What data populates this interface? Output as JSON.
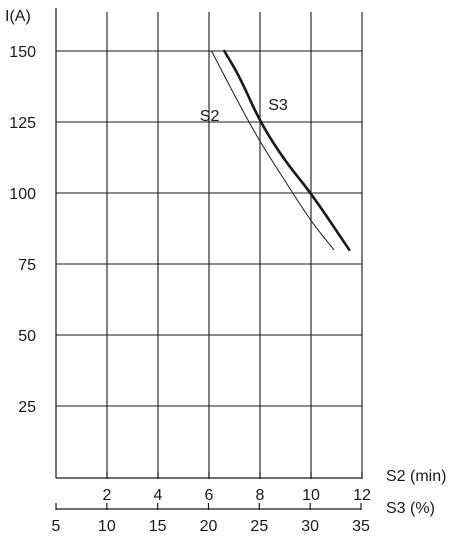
{
  "chart_data": {
    "type": "line",
    "ylabel": "I(A)",
    "y_ticks": [
      25,
      50,
      75,
      100,
      125,
      150
    ],
    "ylim": [
      0,
      160
    ],
    "x_axes": [
      {
        "label": "S2 (min)",
        "ticks": [
          2,
          4,
          6,
          8,
          10,
          12
        ],
        "xlim": [
          0,
          12
        ]
      },
      {
        "label": "S3 (%)",
        "ticks": [
          5,
          10,
          15,
          20,
          25,
          30,
          35
        ],
        "xlim": [
          5,
          35
        ]
      }
    ],
    "grid": true,
    "series": [
      {
        "name": "S2",
        "axis": "S2 (min)",
        "stroke": "thin",
        "x": [
          6.1,
          7.2,
          8.0,
          9.0,
          10.0,
          10.9
        ],
        "y": [
          150,
          131,
          118,
          104,
          90,
          80
        ]
      },
      {
        "name": "S3",
        "axis": "S2 (min)",
        "stroke": "thick",
        "x": [
          6.6,
          7.2,
          8.0,
          9.0,
          10.0,
          11.5
        ],
        "y": [
          150,
          141,
          125,
          111,
          100,
          80
        ]
      }
    ]
  },
  "colors": {
    "ink": "#1a1a1a",
    "background": "#ffffff"
  }
}
